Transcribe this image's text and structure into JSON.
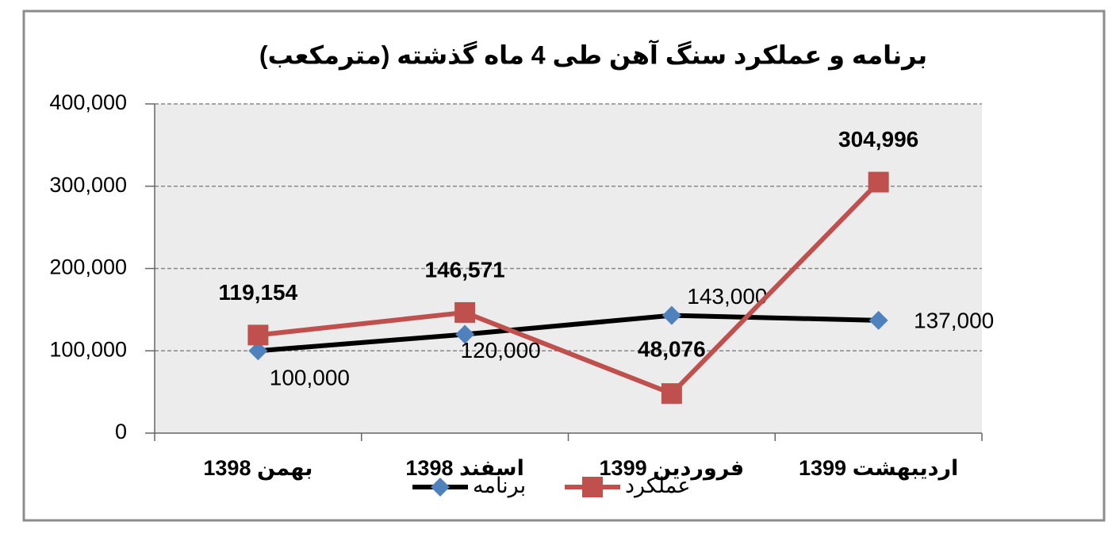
{
  "chart_data": {
    "type": "line",
    "title": "برنامه و عملکرد سنگ آهن طی 4 ماه گذشته (مترمکعب)",
    "categories": [
      "بهمن 1398",
      "اسفند 1398",
      "فروردین 1399",
      "اردیبهشت 1399"
    ],
    "series": [
      {
        "name": "برنامه",
        "color": "#000000",
        "marker": "diamond",
        "marker_color": "#4f81bd",
        "values": [
          100000,
          120000,
          143000,
          137000
        ],
        "value_labels": [
          "100,000",
          "120,000",
          "143,000",
          "137,000"
        ]
      },
      {
        "name": "عملکرد",
        "color": "#c0504d",
        "marker": "square",
        "marker_color": "#c0504d",
        "values": [
          119154,
          146571,
          48076,
          304996
        ],
        "value_labels": [
          "119,154",
          "146,571",
          "48,076",
          "304,996"
        ]
      }
    ],
    "ylim": [
      0,
      400000
    ],
    "yticks": [
      0,
      {
        "value": 100000,
        "label": "100,000"
      },
      {
        "value": 200000,
        "label": "200,000"
      },
      {
        "value": 300000,
        "label": "300,000"
      },
      {
        "value": 400000,
        "label": "400,000"
      }
    ],
    "grid": true,
    "legend": "bottom"
  }
}
